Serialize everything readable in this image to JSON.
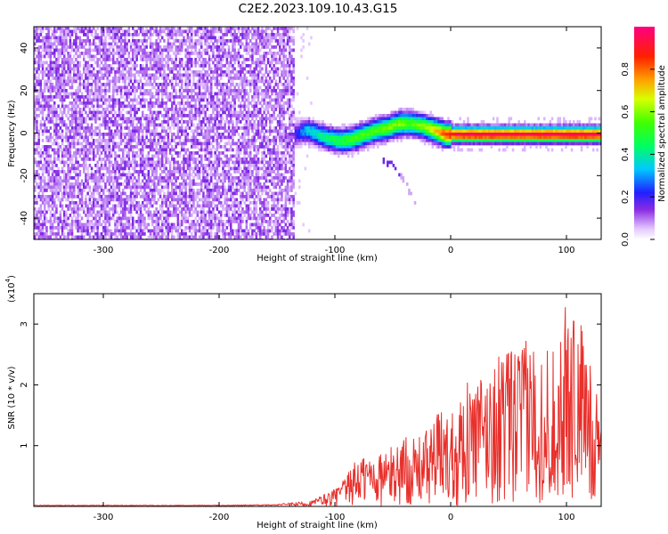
{
  "chart_data": [
    {
      "type": "heatmap",
      "title": "C2E2.2023.109.10.43.G15",
      "xlabel": "Height of straight line (km)",
      "ylabel": "Frequency (Hz)",
      "xlim": [
        -360,
        130
      ],
      "ylim": [
        -50,
        50
      ],
      "xticks": [
        -300,
        -200,
        -100,
        0,
        100
      ],
      "yticks": [
        -40,
        -20,
        0,
        20,
        40
      ],
      "x_tick_labels": [
        "-300",
        "-200",
        "-100",
        "0",
        "100"
      ],
      "y_tick_labels": [
        "-40",
        "-20",
        "0",
        "20",
        "40"
      ],
      "colorbar": {
        "label": "Normalized spectral amplitude",
        "range": [
          0,
          1
        ],
        "ticks": [
          0.0,
          0.2,
          0.4,
          0.6,
          0.8
        ],
        "tick_labels": [
          "0.0",
          "0.2",
          "0.4",
          "0.6",
          "0.8"
        ],
        "colormap": "rainbow"
      },
      "noise_region_x": [
        -360,
        -135
      ],
      "noise_level_typical": 0.1,
      "signal_track": {
        "x": [
          -135,
          -125,
          -115,
          -105,
          -95,
          -85,
          -75,
          -65,
          -55,
          -45,
          -35,
          -25,
          -15,
          -5,
          5,
          15,
          25,
          40,
          60,
          80,
          100,
          115,
          130
        ],
        "frequency": [
          0,
          2,
          0,
          -2,
          -3,
          -2,
          0,
          2,
          3,
          5,
          5,
          4,
          2,
          0,
          0,
          0,
          0,
          0,
          0,
          0,
          0,
          0,
          0
        ],
        "amplitude": [
          0.2,
          0.35,
          0.4,
          0.45,
          0.5,
          0.55,
          0.55,
          0.55,
          0.6,
          0.6,
          0.55,
          0.6,
          0.7,
          0.85,
          0.95,
          0.95,
          0.95,
          0.95,
          0.95,
          0.95,
          0.95,
          0.95,
          0.95
        ]
      },
      "secondary_trace": {
        "x": [
          -60,
          -50,
          -40,
          -30
        ],
        "frequency": [
          -12,
          -15,
          -22,
          -35
        ]
      }
    },
    {
      "type": "line",
      "xlabel": "Height of straight line (km)",
      "ylabel": "SNR (10 * v/v)",
      "y_multiplier_label": "(x10",
      "y_multiplier_exponent": "4",
      "xlim": [
        -360,
        130
      ],
      "ylim": [
        0,
        3.5
      ],
      "xticks": [
        -300,
        -200,
        -100,
        0,
        100
      ],
      "yticks": [
        1,
        2,
        3
      ],
      "x_tick_labels": [
        "-300",
        "-200",
        "-100",
        "0",
        "100"
      ],
      "y_tick_labels": [
        "1",
        "2",
        "3"
      ],
      "color": "#e8302c",
      "series": [
        {
          "x": [
            -360,
            -300,
            -200,
            -150,
            -120,
            -110,
            -100,
            -90,
            -80,
            -70,
            -60,
            -50,
            -40,
            -30,
            -20,
            -10,
            0,
            10,
            20,
            30,
            40,
            50,
            60,
            70,
            80,
            90,
            100,
            110,
            120,
            130
          ],
          "peak": [
            0.02,
            0.02,
            0.02,
            0.03,
            0.1,
            0.2,
            0.3,
            0.5,
            0.85,
            0.9,
            0.9,
            1.0,
            1.2,
            1.1,
            1.3,
            1.6,
            1.6,
            2.0,
            2.1,
            2.2,
            2.5,
            2.6,
            2.7,
            2.8,
            2.6,
            2.7,
            3.35,
            3.3,
            2.4,
            2.2
          ]
        }
      ]
    }
  ]
}
